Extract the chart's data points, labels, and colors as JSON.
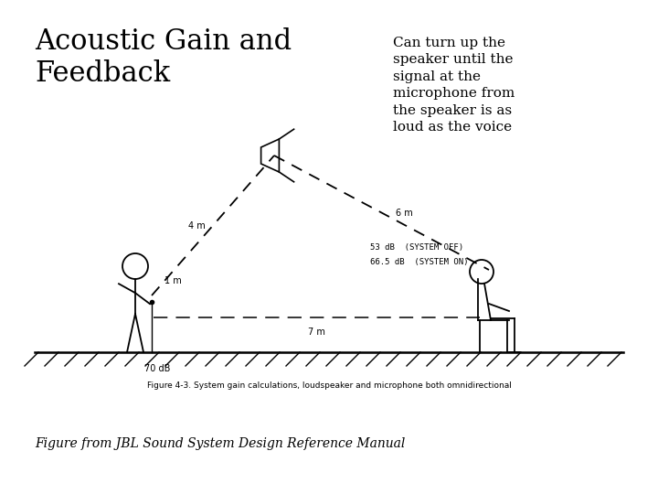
{
  "title": "Acoustic Gain and\nFeedback",
  "subtitle": "Can turn up the\nspeaker until the\nsignal at the\nmicrophone from\nthe speaker is as\nloud as the voice",
  "caption": "Figure 4-3. System gain calculations, loudspeaker and microphone both omnidirectional",
  "footer": "Figure from JBL Sound System Design Reference Manual",
  "bg_color": "#ffffff",
  "text_color": "#000000",
  "label_70dB": "70 dB",
  "label_53dB": "53 dB  {SYSTEM OFF}",
  "label_66dB": "66.5 dB  {SYSTEM ON}",
  "label_7m": "7 m",
  "label_4m": "4 m",
  "label_6m": "6 m",
  "label_1m": "1 m",
  "title_fontsize": 22,
  "subtitle_fontsize": 11,
  "caption_fontsize": 6.5,
  "footer_fontsize": 10
}
